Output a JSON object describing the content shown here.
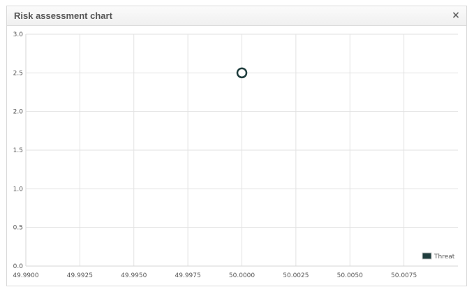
{
  "panel": {
    "title": "Risk assessment chart",
    "close_label": "×"
  },
  "chart_data": {
    "type": "scatter",
    "title": "",
    "xlabel": "",
    "ylabel": "",
    "xlim": [
      49.99,
      50.01
    ],
    "ylim": [
      0,
      3
    ],
    "x_ticks": [
      49.99,
      49.9925,
      49.995,
      49.9975,
      50.0,
      50.0025,
      50.005,
      50.0075
    ],
    "x_tick_labels": [
      "49.9900",
      "49.9925",
      "49.9950",
      "49.9975",
      "50.0000",
      "50.0025",
      "50.0050",
      "50.0075"
    ],
    "y_ticks": [
      0,
      0.5,
      1,
      1.5,
      2,
      2.5,
      3
    ],
    "y_tick_labels": [
      "0.0",
      "0.5",
      "1.0",
      "1.5",
      "2.0",
      "2.5",
      "3.0"
    ],
    "grid": true,
    "legend_position": "bottom-right",
    "series": [
      {
        "name": "Threat",
        "color": "#1f3d3d",
        "points": [
          {
            "x": 50.0,
            "y": 2.5
          }
        ]
      }
    ]
  }
}
